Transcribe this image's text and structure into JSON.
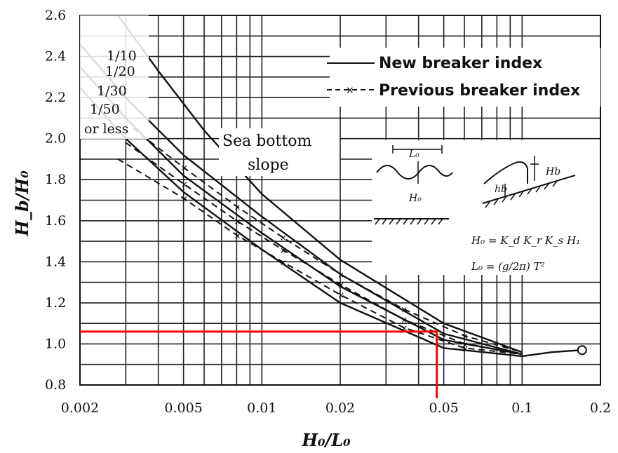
{
  "chart_data": {
    "type": "line",
    "xscale": "log",
    "xlim": [
      0.002,
      0.2
    ],
    "ylim": [
      0.8,
      2.6
    ],
    "xlabel": "H₀/L₀",
    "ylabel": "H_b/H₀",
    "x_ticks": [
      0.002,
      0.005,
      0.01,
      0.02,
      0.05,
      0.1,
      0.2
    ],
    "x_tick_labels": [
      "0.002",
      "0.005",
      "0.01",
      "0.02",
      "0.05",
      "0.1",
      "0.2"
    ],
    "y_ticks": [
      0.8,
      1.0,
      1.2,
      1.4,
      1.6,
      1.8,
      2.0,
      2.2,
      2.4,
      2.6
    ],
    "y_tick_labels": [
      "0.8",
      "1.0",
      "1.2",
      "1.4",
      "1.6",
      "1.8",
      "2.0",
      "2.2",
      "2.4",
      "2.6"
    ],
    "grid": true,
    "legend": [
      {
        "label": "New breaker index",
        "style": "solid"
      },
      {
        "label": "Previous breaker index",
        "style": "dashed"
      }
    ],
    "slope_labels": [
      "1/10",
      "1/20",
      "1/30",
      "1/50",
      "or less"
    ],
    "annotation": [
      "Sea bottom",
      "slope"
    ],
    "series": [
      {
        "name": "1/10",
        "style": "solid",
        "x": [
          0.0028,
          0.004,
          0.006,
          0.01,
          0.02,
          0.05,
          0.1
        ],
        "y": [
          2.6,
          2.33,
          2.04,
          1.73,
          1.41,
          1.1,
          0.96
        ]
      },
      {
        "name": "1/20",
        "style": "solid",
        "x": [
          0.002,
          0.003,
          0.005,
          0.01,
          0.02,
          0.05,
          0.1
        ],
        "y": [
          2.46,
          2.2,
          1.92,
          1.62,
          1.34,
          1.05,
          0.95
        ]
      },
      {
        "name": "1/30",
        "style": "solid",
        "x": [
          0.002,
          0.003,
          0.005,
          0.01,
          0.02,
          0.05,
          0.1
        ],
        "y": [
          2.35,
          2.1,
          1.82,
          1.54,
          1.28,
          1.02,
          0.95
        ]
      },
      {
        "name": "1/50",
        "style": "solid",
        "x": [
          0.002,
          0.003,
          0.005,
          0.01,
          0.02,
          0.05,
          0.1,
          0.13,
          0.17
        ],
        "y": [
          2.25,
          2.0,
          1.74,
          1.46,
          1.2,
          0.98,
          0.94,
          0.96,
          0.97
        ]
      },
      {
        "name": "1/10",
        "style": "dashed",
        "x": [
          0.0032,
          0.005,
          0.008,
          0.012,
          0.02,
          0.035,
          0.06,
          0.1
        ],
        "y": [
          2.05,
          1.86,
          1.67,
          1.52,
          1.34,
          1.17,
          1.04,
          0.96
        ]
      },
      {
        "name": "1/20",
        "style": "dashed",
        "x": [
          0.003,
          0.005,
          0.008,
          0.012,
          0.02,
          0.035,
          0.06,
          0.1
        ],
        "y": [
          1.98,
          1.78,
          1.6,
          1.46,
          1.29,
          1.12,
          1.0,
          0.95
        ]
      },
      {
        "name": "1/50",
        "style": "dashed",
        "x": [
          0.0028,
          0.005,
          0.008,
          0.012,
          0.02,
          0.035,
          0.06,
          0.1
        ],
        "y": [
          1.9,
          1.71,
          1.53,
          1.4,
          1.24,
          1.08,
          0.98,
          0.95
        ]
      }
    ],
    "end_point": {
      "x": 0.17,
      "y": 0.97
    },
    "red_reference": {
      "x": 0.047,
      "y": 1.06,
      "color": "#ff0000"
    },
    "inset": {
      "labels": [
        "L₀",
        "H₀",
        "hb",
        "Hb"
      ],
      "formulas": [
        "H₀ = K_d K_r K_s H₁",
        "L₀ = (g/2π) T²"
      ]
    }
  }
}
